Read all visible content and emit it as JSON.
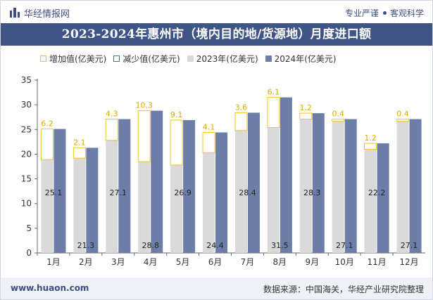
{
  "brand": {
    "name": "华经情报网",
    "icon": "bar-logo-icon"
  },
  "slogan": {
    "left": "专业严谨",
    "right": "客观科学"
  },
  "title": "2023-2024年惠州市（境内目的地/货源地）月度进口额",
  "legend": [
    {
      "label": "增加值(亿美元)",
      "color": "#f5c518",
      "style": "outline"
    },
    {
      "label": "减少值(亿美元)",
      "color": "#4a6aa8",
      "style": "outline"
    },
    {
      "label": "2023年(亿美元)",
      "color": "#d9d9d9",
      "style": "fill"
    },
    {
      "label": "2024年(亿美元)",
      "color": "#6c7ea8",
      "style": "fill"
    }
  ],
  "footer": {
    "site": "www.huaon.com",
    "source": "数据来源：中国海关，华经产业研究院整理"
  },
  "chart_data": {
    "type": "bar",
    "categories": [
      "1月",
      "2月",
      "3月",
      "4月",
      "5月",
      "6月",
      "7月",
      "8月",
      "9月",
      "10月",
      "11月",
      "12月"
    ],
    "series": [
      {
        "name": "2023年(亿美元)",
        "values": [
          18.9,
          19.2,
          22.8,
          18.5,
          17.8,
          20.3,
          24.8,
          25.4,
          27.1,
          26.7,
          21.0,
          26.7
        ]
      },
      {
        "name": "2024年(亿美元)",
        "values": [
          25.1,
          21.3,
          27.1,
          28.8,
          26.9,
          24.4,
          28.4,
          31.5,
          28.3,
          27.1,
          22.2,
          27.1
        ]
      },
      {
        "name": "增加值(亿美元)",
        "values": [
          6.2,
          2.1,
          4.3,
          10.3,
          9.1,
          4.1,
          3.6,
          6.1,
          1.2,
          0.4,
          1.2,
          0.4
        ]
      }
    ],
    "bar_labels": [
      "25.1",
      "21.3",
      "27.1",
      "28.8",
      "26.9",
      "24.4",
      "28.4",
      "31.5",
      "28.3",
      "27.1",
      "22.2",
      "27.1"
    ],
    "change_labels": [
      "6.2",
      "2.1",
      "4.3",
      "10.3",
      "9.1",
      "4.1",
      "3.6",
      "6.1",
      "1.2",
      "0.4",
      "1.2",
      "0.4"
    ],
    "yticks": [
      "0",
      "5",
      "10",
      "15",
      "20",
      "25",
      "30",
      "35"
    ],
    "ylim": [
      0,
      35
    ],
    "grid": false,
    "legend_position": "top"
  }
}
